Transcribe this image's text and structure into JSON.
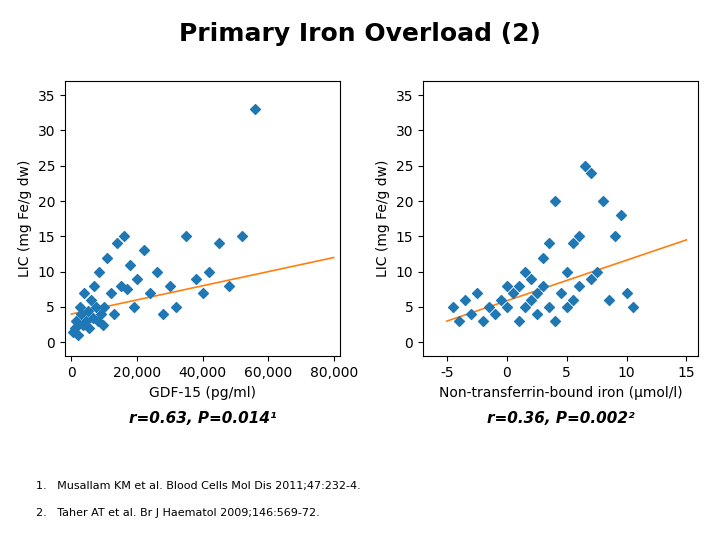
{
  "title": "Primary Iron Overload (2)",
  "annotations": [
    "1.   Musallam KM et al. Blood Cells Mol Dis 2011;47:232-4.",
    "2.   Taher AT et al. Br J Haematol 2009;146:569-72."
  ],
  "chart_data": [
    {
      "type": "scatter",
      "x_label": "GDF-15 (pg/ml)",
      "y_label": "LIC (mg Fe/g dw)",
      "xlim": [
        -2000,
        82000
      ],
      "ylim": [
        -2,
        37
      ],
      "xticks": [
        0,
        {
          "value": 20000,
          "label": "20,000"
        },
        {
          "value": 40000,
          "label": "40,000"
        },
        {
          "value": 60000,
          "label": "60,000"
        },
        {
          "value": 80000,
          "label": "80,000"
        }
      ],
      "yticks": [
        0,
        5,
        10,
        15,
        20,
        25,
        30,
        35
      ],
      "annotation": "r=0.63, P=0.014¹",
      "series": [
        {
          "type": "scatter",
          "marker": "diamond",
          "x": [
            500,
            1000,
            1500,
            2000,
            2500,
            3000,
            3500,
            4000,
            4500,
            5000,
            5500,
            6000,
            6500,
            7000,
            7500,
            8000,
            8500,
            9000,
            9500,
            10000,
            11000,
            12000,
            13000,
            14000,
            15000,
            16000,
            17000,
            18000,
            19000,
            20000,
            22000,
            24000,
            26000,
            28000,
            30000,
            32000,
            35000,
            38000,
            40000,
            42000,
            45000,
            48000,
            52000,
            56000
          ],
          "values": [
            1.5,
            2.0,
            3.0,
            1.0,
            5.0,
            4.0,
            2.5,
            7.0,
            3.0,
            4.5,
            2.0,
            6.0,
            3.5,
            8.0,
            5.0,
            3.0,
            10.0,
            4.0,
            2.5,
            5.0,
            12.0,
            7.0,
            4.0,
            14.0,
            8.0,
            15.0,
            7.5,
            11.0,
            5.0,
            9.0,
            13.0,
            7.0,
            10.0,
            4.0,
            8.0,
            5.0,
            15.0,
            9.0,
            7.0,
            10.0,
            14.0,
            8.0,
            15.0,
            33.0
          ]
        },
        {
          "type": "line",
          "x": [
            0,
            80000
          ],
          "values": [
            4.0,
            12.0
          ]
        }
      ]
    },
    {
      "type": "scatter",
      "x_label": "Non-transferrin-bound iron (μmol/l)",
      "y_label": "LIC (mg Fe/g dw)",
      "xlim": [
        -7,
        16
      ],
      "ylim": [
        -2,
        37
      ],
      "xticks": [
        -5,
        0,
        5,
        10,
        15
      ],
      "yticks": [
        0,
        5,
        10,
        15,
        20,
        25,
        30,
        35
      ],
      "annotation": "r=0.36, P=0.002²",
      "series": [
        {
          "type": "scatter",
          "marker": "diamond",
          "x": [
            -4.5,
            -4.0,
            -3.5,
            -3.0,
            -2.5,
            -2.0,
            -1.5,
            -1.0,
            -0.5,
            0.0,
            0.0,
            0.5,
            1.0,
            1.0,
            1.5,
            1.5,
            2.0,
            2.0,
            2.5,
            2.5,
            3.0,
            3.0,
            3.5,
            3.5,
            4.0,
            4.0,
            4.5,
            5.0,
            5.0,
            5.5,
            5.5,
            6.0,
            6.0,
            6.5,
            7.0,
            7.0,
            7.5,
            8.0,
            8.5,
            9.0,
            9.5,
            10.0,
            10.5
          ],
          "values": [
            5.0,
            3.0,
            6.0,
            4.0,
            7.0,
            3.0,
            5.0,
            4.0,
            6.0,
            8.0,
            5.0,
            7.0,
            3.0,
            8.0,
            10.0,
            5.0,
            6.0,
            9.0,
            4.0,
            7.0,
            12.0,
            8.0,
            5.0,
            14.0,
            3.0,
            20.0,
            7.0,
            5.0,
            10.0,
            6.0,
            14.0,
            15.0,
            8.0,
            25.0,
            9.0,
            24.0,
            10.0,
            20.0,
            6.0,
            15.0,
            18.0,
            7.0,
            5.0
          ]
        },
        {
          "type": "line",
          "x": [
            -5,
            15
          ],
          "values": [
            3.0,
            14.5
          ]
        }
      ]
    }
  ]
}
